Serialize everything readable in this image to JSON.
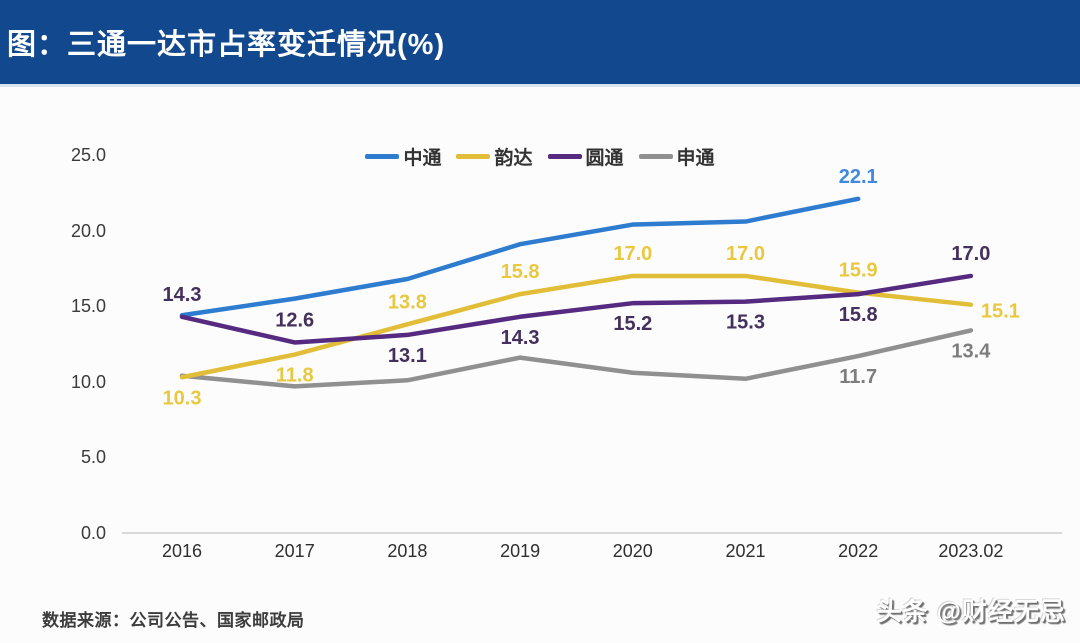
{
  "banner": {
    "title": "图：三通一达市占率变迁情况(%)"
  },
  "footer": {
    "source": "数据来源：公司公告、国家邮政局",
    "watermark": "头条 @财经无忌"
  },
  "chart_data": {
    "type": "line",
    "title": "三通一达市占率变迁情况(%)",
    "categories": [
      "2016",
      "2017",
      "2018",
      "2019",
      "2020",
      "2021",
      "2022",
      "2023.02"
    ],
    "y_ticks": [
      "25.0",
      "20.0",
      "15.0",
      "10.0",
      "5.0",
      "0.0"
    ],
    "ylim": [
      0,
      25
    ],
    "grid": false,
    "legend_position": "top-center",
    "series": [
      {
        "name": "中通",
        "color": "#2e7ccf",
        "label_color": "#4189dc",
        "values": [
          14.4,
          15.5,
          16.8,
          19.1,
          20.4,
          20.6,
          22.1,
          null
        ],
        "point_labels": [
          null,
          null,
          null,
          null,
          null,
          null,
          "22.1",
          null
        ]
      },
      {
        "name": "韵达",
        "color": "#e2bd38",
        "label_color": "#e9c83f",
        "values": [
          10.3,
          11.8,
          13.8,
          15.8,
          17.0,
          17.0,
          15.9,
          15.1
        ],
        "point_labels": [
          "10.3",
          "11.8",
          "13.8",
          "15.8",
          "17.0",
          "17.0",
          "15.9",
          "15.1"
        ]
      },
      {
        "name": "圆通",
        "color": "#552a80",
        "label_color": "#44305c",
        "values": [
          14.3,
          12.6,
          13.1,
          14.3,
          15.2,
          15.3,
          15.8,
          17.0
        ],
        "point_labels": [
          "14.3",
          "12.6",
          "13.1",
          "14.3",
          "15.2",
          "15.3",
          "15.8",
          "17.0"
        ]
      },
      {
        "name": "申通",
        "color": "#909090",
        "label_color": "#7d7d7d",
        "values": [
          10.4,
          9.7,
          10.1,
          11.6,
          10.6,
          10.2,
          11.7,
          13.4
        ],
        "point_labels": [
          null,
          null,
          null,
          null,
          null,
          null,
          "11.7",
          "13.4"
        ]
      }
    ]
  }
}
